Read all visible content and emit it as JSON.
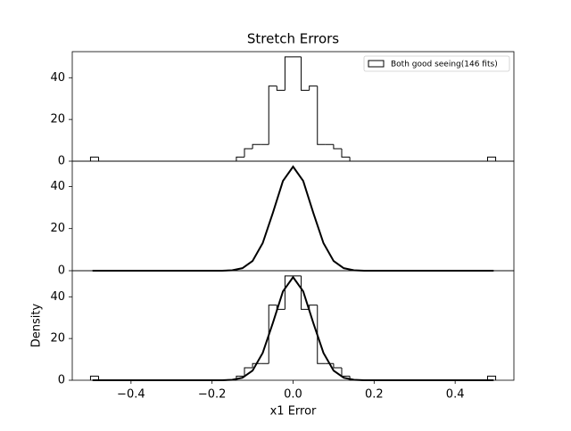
{
  "chart_data": [
    {
      "type": "histogram",
      "title": "Stretch Errors",
      "bins": [
        -0.5,
        -0.48,
        -0.46,
        -0.44,
        -0.42,
        -0.4,
        -0.38,
        -0.36,
        -0.34,
        -0.32,
        -0.3,
        -0.28,
        -0.26,
        -0.24,
        -0.22,
        -0.2,
        -0.18,
        -0.16,
        -0.14,
        -0.12,
        -0.1,
        -0.08,
        -0.06,
        -0.04,
        -0.02,
        0,
        0.02,
        0.04,
        0.06,
        0.08,
        0.1,
        0.12,
        0.14,
        0.16,
        0.18,
        0.2,
        0.22,
        0.24,
        0.26,
        0.28,
        0.3,
        0.32,
        0.34,
        0.36,
        0.38,
        0.4,
        0.42,
        0.44,
        0.46,
        0.48,
        0.5
      ],
      "values": [
        2,
        0,
        0,
        0,
        0,
        0,
        0,
        0,
        0,
        0,
        0,
        0,
        0,
        0,
        0,
        0,
        0,
        0,
        2,
        6,
        8,
        8,
        36,
        34,
        50,
        50,
        34,
        36,
        8,
        8,
        6,
        2,
        0,
        0,
        0,
        0,
        0,
        0,
        0,
        0,
        0,
        0,
        0,
        0,
        0,
        0,
        0,
        0,
        0,
        2
      ],
      "series_name": "Both good seeing(146 fits)",
      "legend": "upper right",
      "color": "#000000",
      "xlim": [
        -0.545,
        0.545
      ],
      "ylim": [
        0,
        52.5
      ],
      "yticks": [
        0,
        20,
        40
      ]
    },
    {
      "type": "line",
      "x": [
        -0.495,
        -0.2,
        -0.175,
        -0.15,
        -0.125,
        -0.1,
        -0.075,
        -0.05,
        -0.025,
        0,
        0.025,
        0.05,
        0.075,
        0.1,
        0.125,
        0.15,
        0.175,
        0.2,
        0.495
      ],
      "values": [
        0,
        0,
        0,
        0.2,
        1.2,
        4.6,
        13.1,
        27.4,
        42.6,
        49.4,
        42.6,
        27.4,
        13.1,
        4.6,
        1.2,
        0.2,
        0,
        0,
        0
      ],
      "color": "#000000",
      "xlim": [
        -0.545,
        0.545
      ],
      "ylim": [
        0,
        52
      ],
      "yticks": [
        0,
        20,
        40
      ]
    },
    {
      "type": "histogram",
      "ylabel": "Density",
      "xlabel": "x1 Error",
      "bins": [
        -0.5,
        -0.48,
        -0.46,
        -0.44,
        -0.42,
        -0.4,
        -0.38,
        -0.36,
        -0.34,
        -0.32,
        -0.3,
        -0.28,
        -0.26,
        -0.24,
        -0.22,
        -0.2,
        -0.18,
        -0.16,
        -0.14,
        -0.12,
        -0.1,
        -0.08,
        -0.06,
        -0.04,
        -0.02,
        0,
        0.02,
        0.04,
        0.06,
        0.08,
        0.1,
        0.12,
        0.14,
        0.16,
        0.18,
        0.2,
        0.22,
        0.24,
        0.26,
        0.28,
        0.3,
        0.32,
        0.34,
        0.36,
        0.38,
        0.4,
        0.42,
        0.44,
        0.46,
        0.48,
        0.5
      ],
      "values": [
        2,
        0,
        0,
        0,
        0,
        0,
        0,
        0,
        0,
        0,
        0,
        0,
        0,
        0,
        0,
        0,
        0,
        0,
        2,
        6,
        8,
        8,
        36,
        34,
        50,
        50,
        34,
        36,
        8,
        8,
        6,
        2,
        0,
        0,
        0,
        0,
        0,
        0,
        0,
        0,
        0,
        0,
        0,
        0,
        0,
        0,
        0,
        0,
        0,
        2
      ],
      "curve": {
        "x": [
          -0.495,
          -0.2,
          -0.175,
          -0.15,
          -0.125,
          -0.1,
          -0.075,
          -0.05,
          -0.025,
          0,
          0.025,
          0.05,
          0.075,
          0.1,
          0.125,
          0.15,
          0.175,
          0.2,
          0.495
        ],
        "values": [
          0,
          0,
          0,
          0.2,
          1.2,
          4.6,
          13.1,
          27.4,
          42.6,
          49.4,
          42.6,
          27.4,
          13.1,
          4.6,
          1.2,
          0.2,
          0,
          0,
          0
        ]
      },
      "color": "#000000",
      "xlim": [
        -0.545,
        0.545
      ],
      "ylim": [
        0,
        52.5
      ],
      "yticks": [
        0,
        20,
        40
      ],
      "xticks": [
        {
          "value": -0.4,
          "label": "−0.4"
        },
        {
          "value": -0.2,
          "label": "−0.2"
        },
        {
          "value": 0,
          "label": "0.0"
        },
        {
          "value": 0.2,
          "label": "0.2"
        },
        {
          "value": 0.4,
          "label": "0.4"
        }
      ]
    }
  ]
}
